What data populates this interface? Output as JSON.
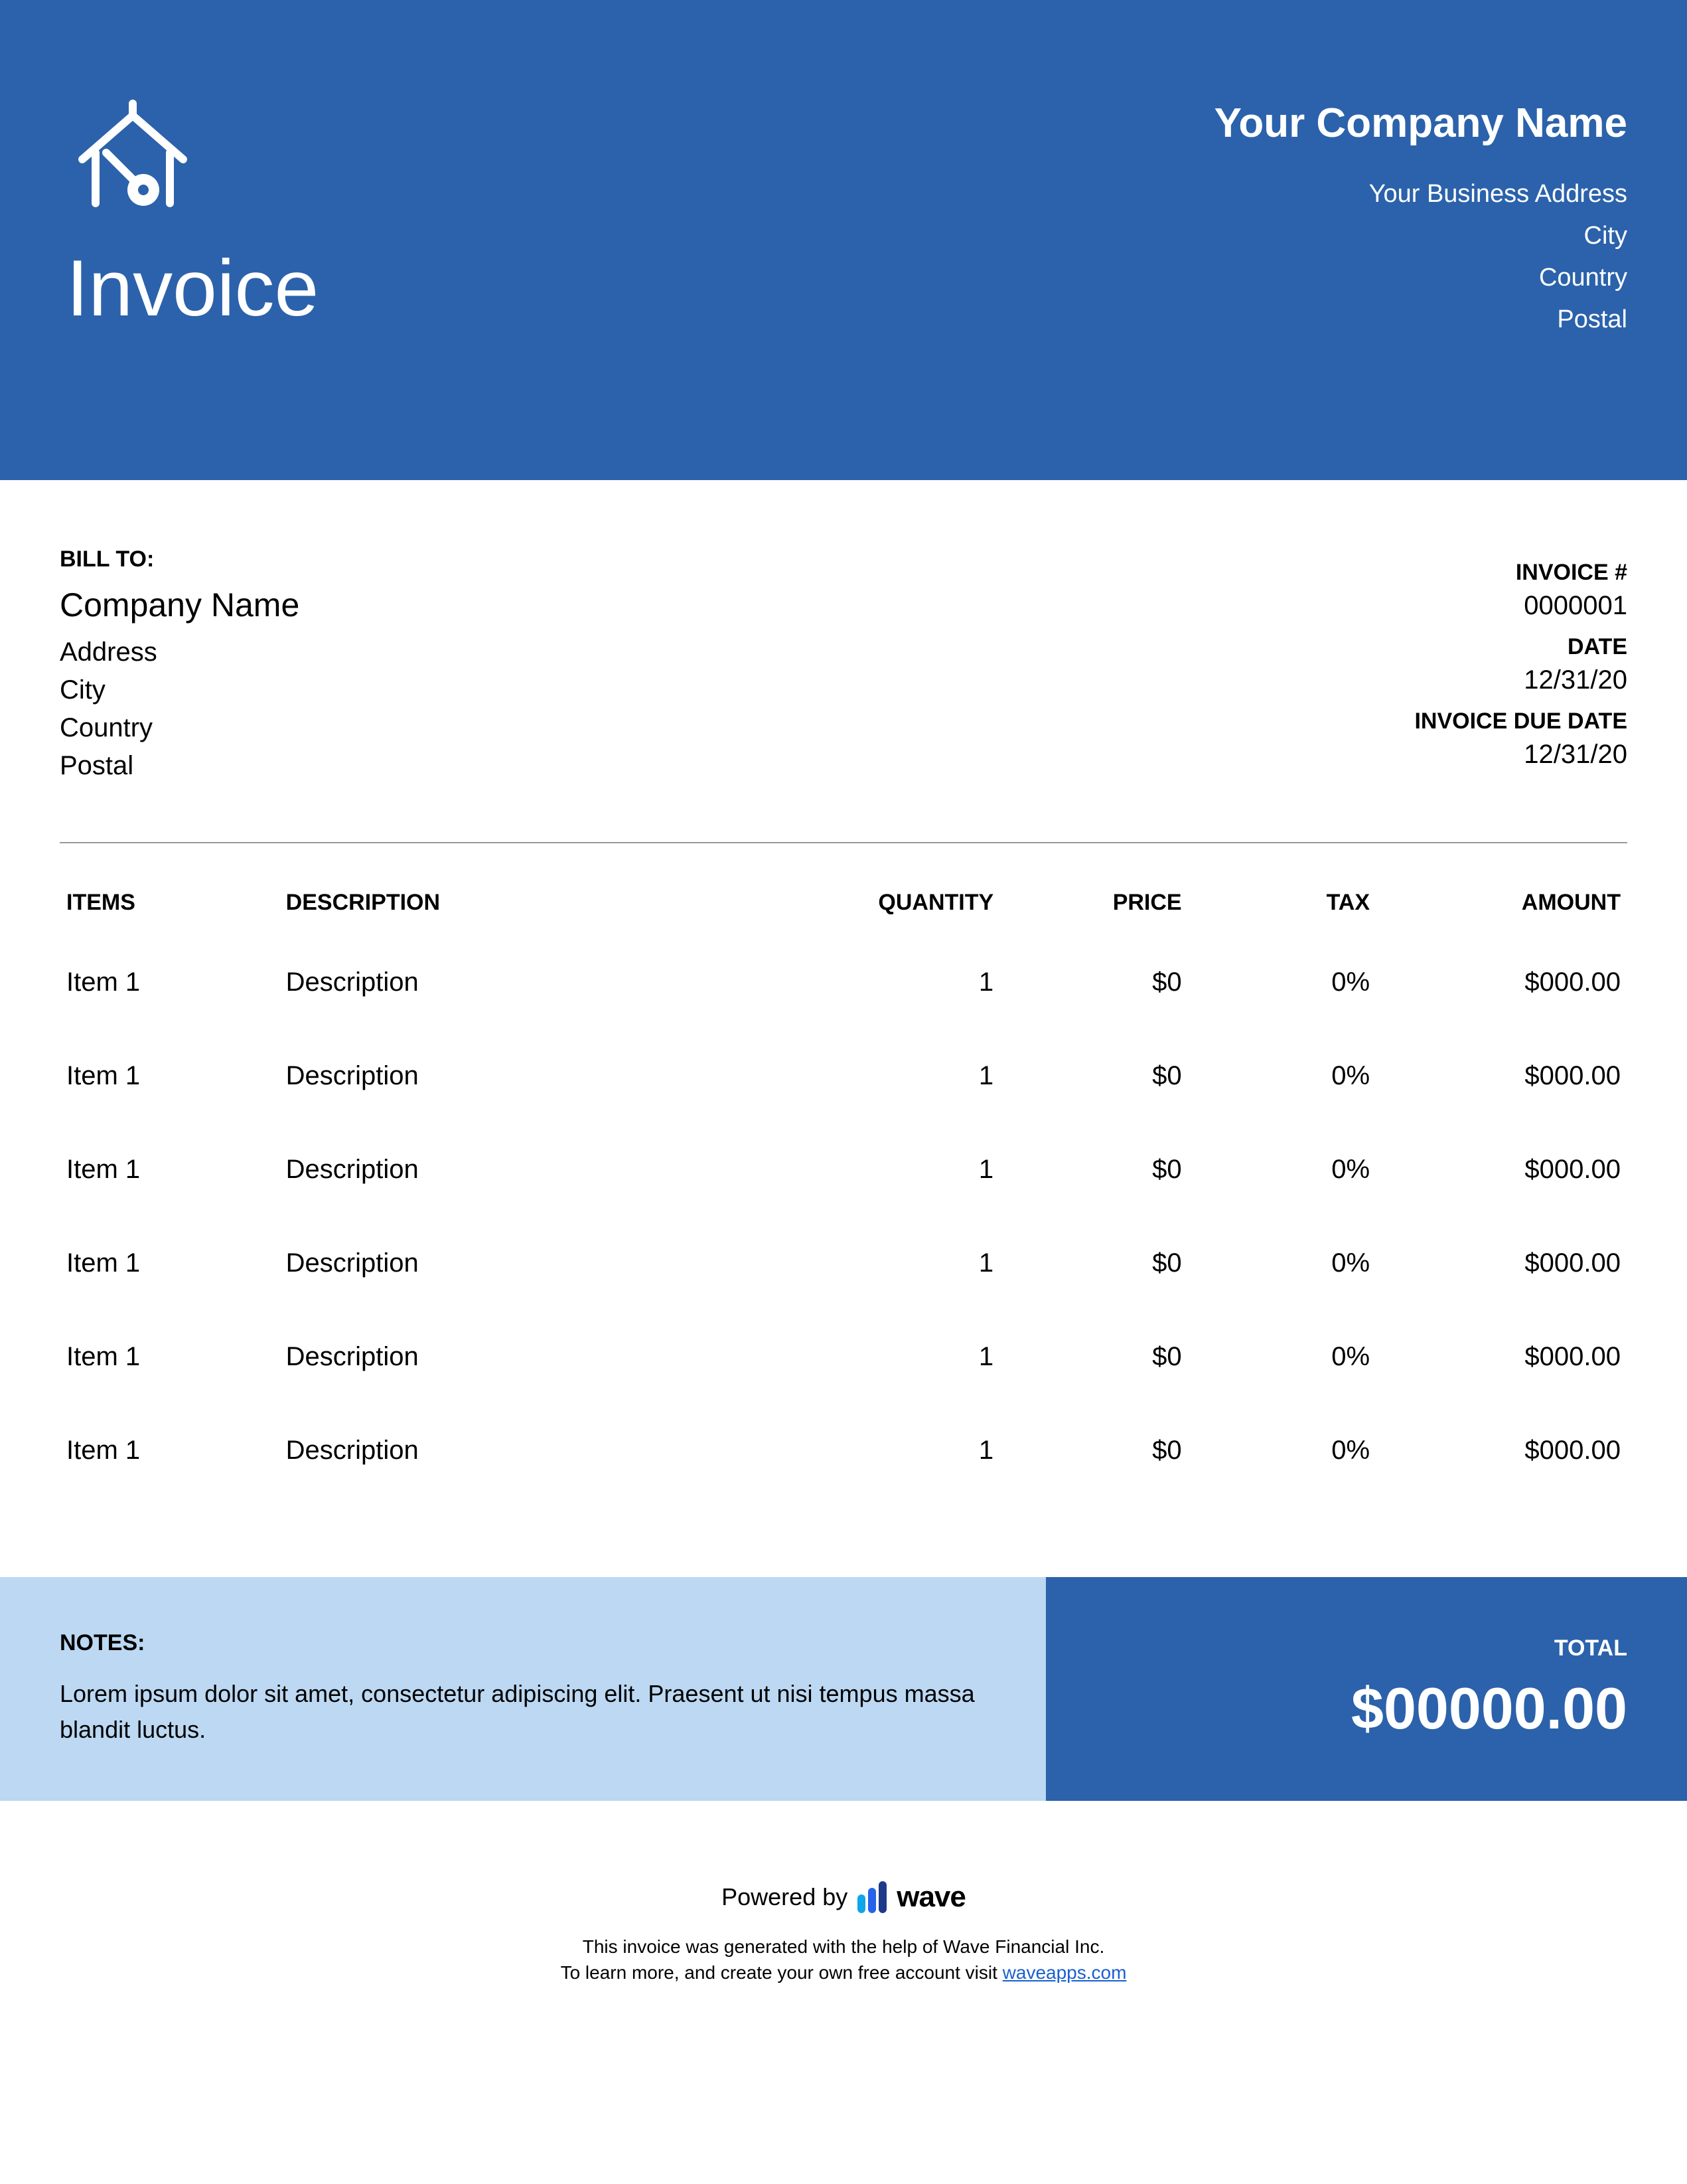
{
  "colors": {
    "primary": "#2b62ab",
    "notes_bg": "#bcd8f2",
    "text": "#000000",
    "white": "#ffffff",
    "divider": "#999999",
    "link": "#1a5fd0"
  },
  "header": {
    "title": "Invoice",
    "company_name": "Your Company Name",
    "address": "Your Business Address",
    "city": "City",
    "country": "Country",
    "postal": "Postal"
  },
  "bill_to": {
    "label": "BILL TO:",
    "company": "Company Name",
    "address": "Address",
    "city": "City",
    "country": "Country",
    "postal": "Postal"
  },
  "invoice_meta": {
    "number_label": "INVOICE #",
    "number": "0000001",
    "date_label": "DATE",
    "date": "12/31/20",
    "due_label": "INVOICE DUE DATE",
    "due_date": "12/31/20"
  },
  "table": {
    "headers": {
      "items": "ITEMS",
      "description": "DESCRIPTION",
      "quantity": "QUANTITY",
      "price": "PRICE",
      "tax": "TAX",
      "amount": "AMOUNT"
    },
    "rows": [
      {
        "item": "Item 1",
        "description": "Description",
        "quantity": "1",
        "price": "$0",
        "tax": "0%",
        "amount": "$000.00"
      },
      {
        "item": "Item 1",
        "description": "Description",
        "quantity": "1",
        "price": "$0",
        "tax": "0%",
        "amount": "$000.00"
      },
      {
        "item": "Item 1",
        "description": "Description",
        "quantity": "1",
        "price": "$0",
        "tax": "0%",
        "amount": "$000.00"
      },
      {
        "item": "Item 1",
        "description": "Description",
        "quantity": "1",
        "price": "$0",
        "tax": "0%",
        "amount": "$000.00"
      },
      {
        "item": "Item 1",
        "description": "Description",
        "quantity": "1",
        "price": "$0",
        "tax": "0%",
        "amount": "$000.00"
      },
      {
        "item": "Item 1",
        "description": "Description",
        "quantity": "1",
        "price": "$0",
        "tax": "0%",
        "amount": "$000.00"
      }
    ]
  },
  "notes": {
    "label": "NOTES:",
    "text": "Lorem ipsum dolor sit amet, consectetur adipiscing elit. Praesent ut nisi tempus massa blandit luctus."
  },
  "total": {
    "label": "TOTAL",
    "amount": "$00000.00"
  },
  "footer": {
    "powered_by": "Powered by",
    "brand": "wave",
    "line1": "This invoice was generated with the help of Wave Financial Inc.",
    "line2_prefix": "To learn more, and create your own free account visit ",
    "link_text": "waveapps.com"
  }
}
